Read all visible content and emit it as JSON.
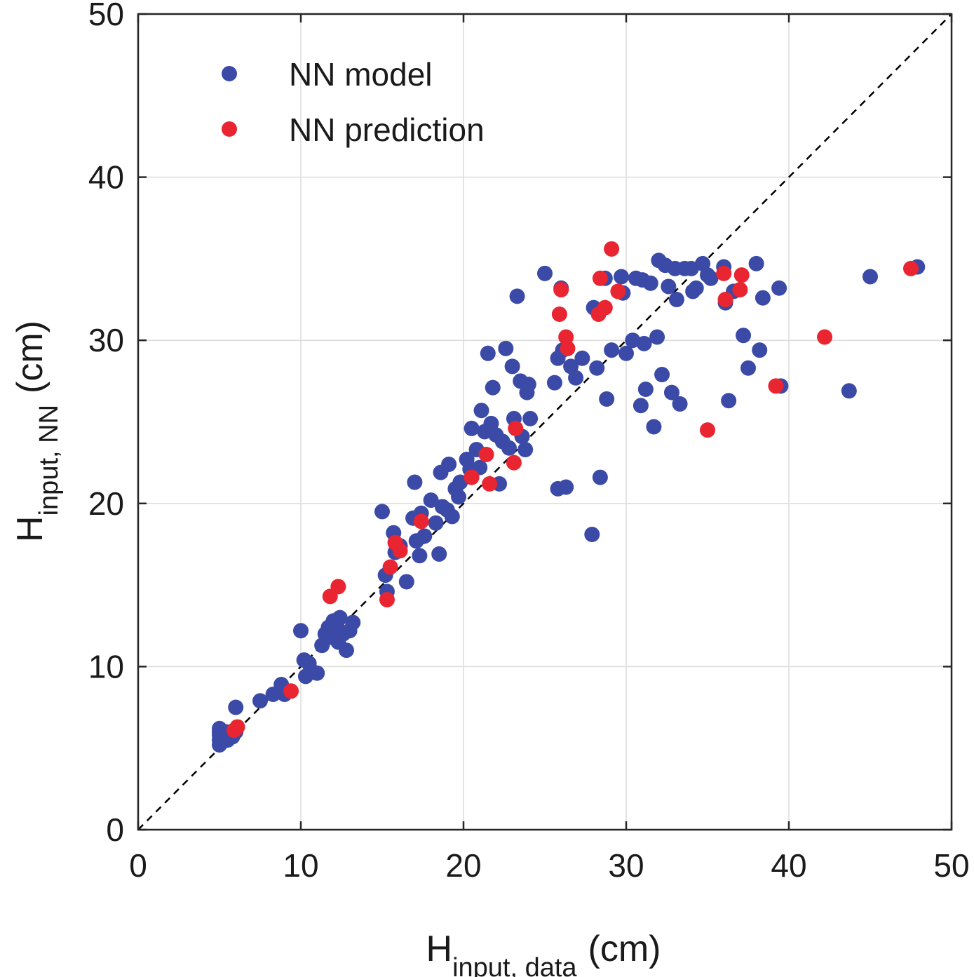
{
  "chart_data": {
    "type": "scatter",
    "title": "",
    "xlabel": {
      "main": "H",
      "sub": "input, data",
      "unit": "(cm)"
    },
    "ylabel": {
      "main": "H",
      "sub": "input, NN",
      "unit": "(cm)"
    },
    "xlim": [
      0,
      50
    ],
    "ylim": [
      0,
      50
    ],
    "xticks": [
      0,
      10,
      20,
      30,
      40,
      50
    ],
    "yticks": [
      0,
      10,
      20,
      30,
      40,
      50
    ],
    "xtick_labels": [
      "0",
      "10",
      "20",
      "30",
      "40",
      "50"
    ],
    "ytick_labels": [
      "0",
      "10",
      "20",
      "30",
      "40",
      "50"
    ],
    "grid": true,
    "legend_position": "top-left",
    "reference_line": {
      "name": "y = x",
      "style": "dashed",
      "color": "#000000"
    },
    "series": [
      {
        "name": "NN model",
        "color": "#3a4aa6",
        "points": [
          [
            5.0,
            5.2
          ],
          [
            5.0,
            5.5
          ],
          [
            5.0,
            5.8
          ],
          [
            5.0,
            6.0
          ],
          [
            5.0,
            6.2
          ],
          [
            5.2,
            5.4
          ],
          [
            5.3,
            5.7
          ],
          [
            5.4,
            6.0
          ],
          [
            5.5,
            5.5
          ],
          [
            5.6,
            5.9
          ],
          [
            5.8,
            5.7
          ],
          [
            6.0,
            6.0
          ],
          [
            6.0,
            7.5
          ],
          [
            7.5,
            7.9
          ],
          [
            8.3,
            8.3
          ],
          [
            8.8,
            8.9
          ],
          [
            9.0,
            8.3
          ],
          [
            10.0,
            12.2
          ],
          [
            10.2,
            10.4
          ],
          [
            10.3,
            9.4
          ],
          [
            10.5,
            10.2
          ],
          [
            10.6,
            9.8
          ],
          [
            11.0,
            9.6
          ],
          [
            11.3,
            11.3
          ],
          [
            11.5,
            12.0
          ],
          [
            11.7,
            12.4
          ],
          [
            11.8,
            11.8
          ],
          [
            12.0,
            12.8
          ],
          [
            12.2,
            12.5
          ],
          [
            12.3,
            11.5
          ],
          [
            12.4,
            13.0
          ],
          [
            12.6,
            12.0
          ],
          [
            12.8,
            11.0
          ],
          [
            13.0,
            12.2
          ],
          [
            13.2,
            12.7
          ],
          [
            15.0,
            19.5
          ],
          [
            15.2,
            15.6
          ],
          [
            15.3,
            14.6
          ],
          [
            15.7,
            18.2
          ],
          [
            15.8,
            17.0
          ],
          [
            16.1,
            17.4
          ],
          [
            16.5,
            15.2
          ],
          [
            16.9,
            19.1
          ],
          [
            17.0,
            21.3
          ],
          [
            17.1,
            17.7
          ],
          [
            17.3,
            16.8
          ],
          [
            17.4,
            19.4
          ],
          [
            17.6,
            18.0
          ],
          [
            18.0,
            20.2
          ],
          [
            18.3,
            18.8
          ],
          [
            18.5,
            16.9
          ],
          [
            18.6,
            21.9
          ],
          [
            18.7,
            19.8
          ],
          [
            19.0,
            19.6
          ],
          [
            19.1,
            22.4
          ],
          [
            19.3,
            19.2
          ],
          [
            19.5,
            20.9
          ],
          [
            19.7,
            20.4
          ],
          [
            19.8,
            21.3
          ],
          [
            20.2,
            22.7
          ],
          [
            20.4,
            22.1
          ],
          [
            20.5,
            24.6
          ],
          [
            20.8,
            23.3
          ],
          [
            21.0,
            22.2
          ],
          [
            21.1,
            25.7
          ],
          [
            21.3,
            24.4
          ],
          [
            21.5,
            29.2
          ],
          [
            21.7,
            24.9
          ],
          [
            21.8,
            27.1
          ],
          [
            22.0,
            24.2
          ],
          [
            22.2,
            21.2
          ],
          [
            22.4,
            23.8
          ],
          [
            22.6,
            29.5
          ],
          [
            22.8,
            23.4
          ],
          [
            23.0,
            28.4
          ],
          [
            23.1,
            25.2
          ],
          [
            23.3,
            32.7
          ],
          [
            23.5,
            27.5
          ],
          [
            23.6,
            24.1
          ],
          [
            23.8,
            23.3
          ],
          [
            23.9,
            26.8
          ],
          [
            24.0,
            27.3
          ],
          [
            24.1,
            25.2
          ],
          [
            25.0,
            34.1
          ],
          [
            25.6,
            27.4
          ],
          [
            25.8,
            28.9
          ],
          [
            25.8,
            20.9
          ],
          [
            26.0,
            33.2
          ],
          [
            26.1,
            29.4
          ],
          [
            26.3,
            21.0
          ],
          [
            26.6,
            28.4
          ],
          [
            26.9,
            27.7
          ],
          [
            27.3,
            28.9
          ],
          [
            27.9,
            18.1
          ],
          [
            28.0,
            32.0
          ],
          [
            28.2,
            28.3
          ],
          [
            28.4,
            21.6
          ],
          [
            28.7,
            33.8
          ],
          [
            28.8,
            26.4
          ],
          [
            29.1,
            29.4
          ],
          [
            29.7,
            33.9
          ],
          [
            29.8,
            32.9
          ],
          [
            30.0,
            29.2
          ],
          [
            30.4,
            30.0
          ],
          [
            30.6,
            33.8
          ],
          [
            30.9,
            26.0
          ],
          [
            31.0,
            33.7
          ],
          [
            31.1,
            29.8
          ],
          [
            31.2,
            27.0
          ],
          [
            31.5,
            33.5
          ],
          [
            31.7,
            24.7
          ],
          [
            31.9,
            30.2
          ],
          [
            32.0,
            34.9
          ],
          [
            32.2,
            27.9
          ],
          [
            32.4,
            34.6
          ],
          [
            32.6,
            33.3
          ],
          [
            32.8,
            26.8
          ],
          [
            33.0,
            34.4
          ],
          [
            33.1,
            32.5
          ],
          [
            33.3,
            26.1
          ],
          [
            33.6,
            34.4
          ],
          [
            34.0,
            34.4
          ],
          [
            34.1,
            33.0
          ],
          [
            34.3,
            33.2
          ],
          [
            34.7,
            34.7
          ],
          [
            35.0,
            34.0
          ],
          [
            35.2,
            33.8
          ],
          [
            36.0,
            34.5
          ],
          [
            36.1,
            32.3
          ],
          [
            36.3,
            26.3
          ],
          [
            36.6,
            33.0
          ],
          [
            37.2,
            30.3
          ],
          [
            37.5,
            28.3
          ],
          [
            38.0,
            34.7
          ],
          [
            38.2,
            29.4
          ],
          [
            38.4,
            32.6
          ],
          [
            39.4,
            33.2
          ],
          [
            39.5,
            27.2
          ],
          [
            43.7,
            26.9
          ],
          [
            45.0,
            33.9
          ],
          [
            47.9,
            34.5
          ]
        ]
      },
      {
        "name": "NN prediction",
        "color": "#e82530",
        "points": [
          [
            5.9,
            6.1
          ],
          [
            6.1,
            6.3
          ],
          [
            9.4,
            8.5
          ],
          [
            11.8,
            14.3
          ],
          [
            12.3,
            14.9
          ],
          [
            15.3,
            14.1
          ],
          [
            15.5,
            16.1
          ],
          [
            15.8,
            17.6
          ],
          [
            16.1,
            17.1
          ],
          [
            17.4,
            18.9
          ],
          [
            20.5,
            21.6
          ],
          [
            21.4,
            23.0
          ],
          [
            21.6,
            21.2
          ],
          [
            23.1,
            22.5
          ],
          [
            23.2,
            24.6
          ],
          [
            25.9,
            31.6
          ],
          [
            26.0,
            33.1
          ],
          [
            26.3,
            30.2
          ],
          [
            26.4,
            29.5
          ],
          [
            28.3,
            31.6
          ],
          [
            28.4,
            33.8
          ],
          [
            28.7,
            32.0
          ],
          [
            29.1,
            35.6
          ],
          [
            29.5,
            33.0
          ],
          [
            35.0,
            24.5
          ],
          [
            36.0,
            34.1
          ],
          [
            36.1,
            32.5
          ],
          [
            37.0,
            33.1
          ],
          [
            37.1,
            34.0
          ],
          [
            39.2,
            27.2
          ],
          [
            42.2,
            30.2
          ],
          [
            47.5,
            34.4
          ]
        ]
      }
    ]
  }
}
